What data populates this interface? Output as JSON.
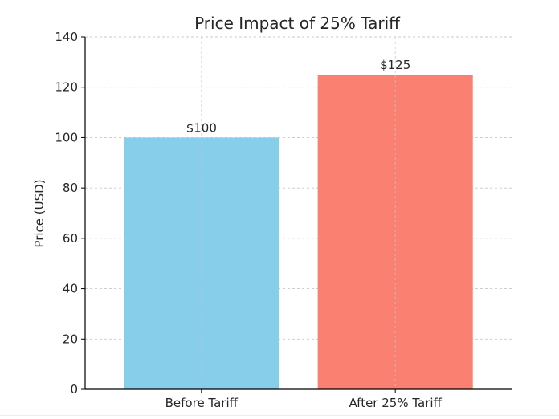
{
  "chart_data": {
    "type": "bar",
    "title": "Price Impact of 25% Tariff",
    "xlabel": "",
    "ylabel": "Price (USD)",
    "categories": [
      "Before Tariff",
      "After 25% Tariff"
    ],
    "values": [
      100,
      125
    ],
    "data_labels": [
      "$100",
      "$125"
    ],
    "bar_colors": [
      "#87ceeb",
      "#fa8072"
    ],
    "ylim": [
      0,
      140
    ],
    "yticks": [
      0,
      20,
      40,
      60,
      80,
      100,
      120,
      140
    ],
    "grid": true,
    "legend": "none"
  }
}
